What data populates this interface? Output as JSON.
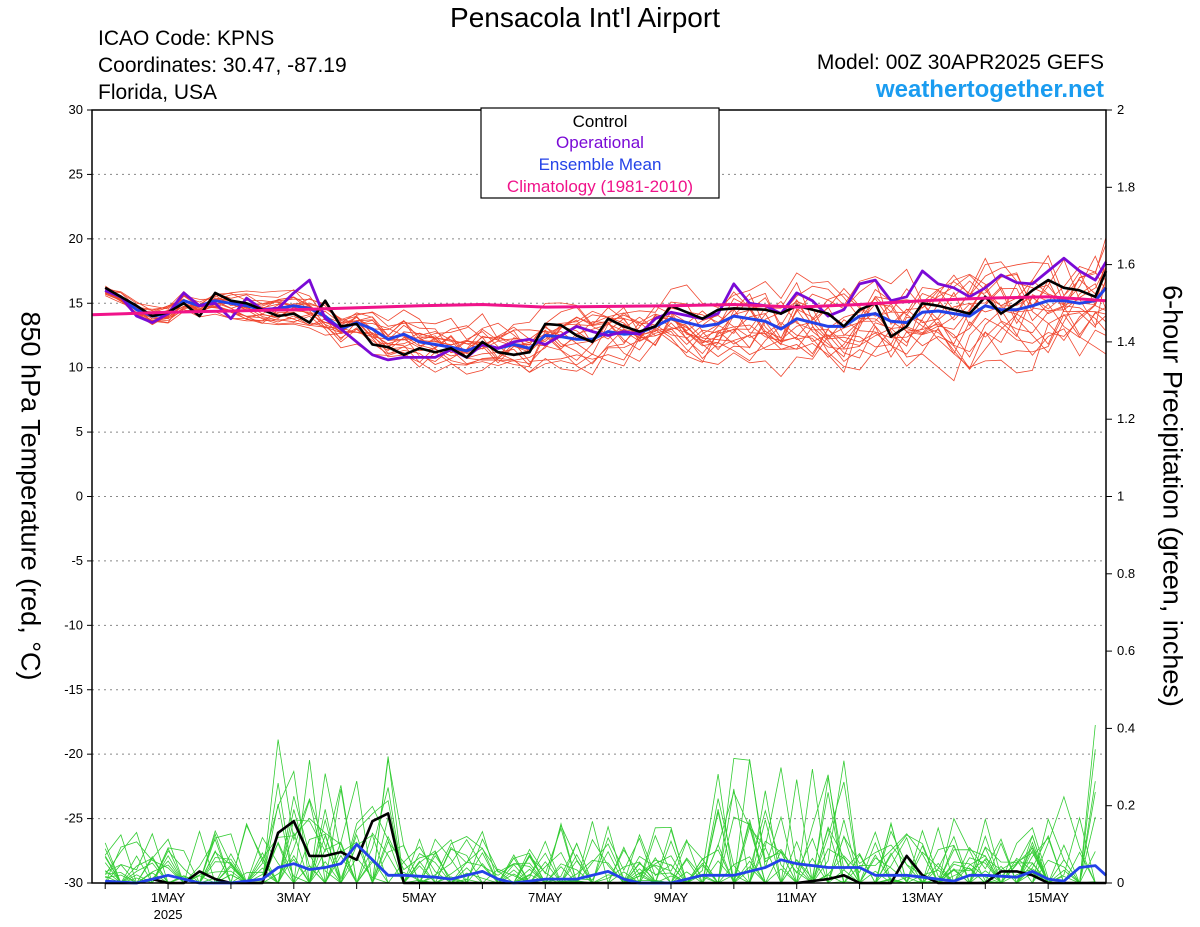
{
  "header": {
    "title": "Pensacola Int'l Airport",
    "icao": "ICAO Code: KPNS",
    "coords": "Coordinates: 30.47, -87.19",
    "region": "Florida, USA",
    "model": "Model: 00Z 30APR2025 GEFS",
    "site": "weathertogether.net"
  },
  "colors": {
    "control": "#000000",
    "operational": "#7a0ad6",
    "ensemble_mean": "#2342e8",
    "climatology": "#f0138a",
    "members_temp": "#f0462e",
    "members_precip": "#33cc33"
  },
  "chart_data": {
    "type": "line",
    "xlabels": [
      "1MAY",
      "3MAY",
      "5MAY",
      "7MAY",
      "9MAY",
      "11MAY",
      "13MAY",
      "15MAY"
    ],
    "xlabel_year": "2025",
    "xlabel_days": [
      1,
      3,
      5,
      7,
      9,
      11,
      13,
      15
    ],
    "xlim": [
      -0.21,
      15.92
    ],
    "ylabel": "850 hPa Temperature (red, °C)",
    "y2label": "6-hour Precipitation (green, inches)",
    "ylim": [
      -30,
      30
    ],
    "y2lim": [
      0,
      2
    ],
    "yticks": [
      30,
      25,
      20,
      15,
      10,
      5,
      0,
      -5,
      -10,
      -15,
      -20,
      -25,
      -30
    ],
    "y2ticks": [
      2,
      1.8,
      1.6,
      1.4,
      1.2,
      1,
      0.8,
      0.6,
      0.4,
      0.2,
      0
    ],
    "grid": "horizontal dotted",
    "legend": {
      "position": "top-center",
      "entries": [
        "Control",
        "Operational",
        "Ensemble Mean",
        "Climatology (1981-2010)"
      ]
    },
    "temperature": {
      "control": [
        [
          0.0,
          16.2
        ],
        [
          0.5,
          14.8
        ],
        [
          0.75,
          14.0
        ],
        [
          1.0,
          14.3
        ],
        [
          1.25,
          15.0
        ],
        [
          1.5,
          14.0
        ],
        [
          1.75,
          15.8
        ],
        [
          2.0,
          15.2
        ],
        [
          2.25,
          15.0
        ],
        [
          2.5,
          14.5
        ],
        [
          2.75,
          14.0
        ],
        [
          3.0,
          14.2
        ],
        [
          3.25,
          13.5
        ],
        [
          3.5,
          15.2
        ],
        [
          3.75,
          13.2
        ],
        [
          4.0,
          13.4
        ],
        [
          4.25,
          11.8
        ],
        [
          4.5,
          11.6
        ],
        [
          4.75,
          11.0
        ],
        [
          5.0,
          11.5
        ],
        [
          5.25,
          11.2
        ],
        [
          5.5,
          11.5
        ],
        [
          5.75,
          10.8
        ],
        [
          6.0,
          12.0
        ],
        [
          6.25,
          11.2
        ],
        [
          6.5,
          11.0
        ],
        [
          6.75,
          11.2
        ],
        [
          7.0,
          13.4
        ],
        [
          7.25,
          13.3
        ],
        [
          7.5,
          12.5
        ],
        [
          7.75,
          12.0
        ],
        [
          8.0,
          13.8
        ],
        [
          8.25,
          13.2
        ],
        [
          8.5,
          12.8
        ],
        [
          8.75,
          13.2
        ],
        [
          9.0,
          14.8
        ],
        [
          9.5,
          13.8
        ],
        [
          9.75,
          14.5
        ],
        [
          10.0,
          14.6
        ],
        [
          10.5,
          14.5
        ],
        [
          10.75,
          14.2
        ],
        [
          11.0,
          14.8
        ],
        [
          11.5,
          14.2
        ],
        [
          11.75,
          13.2
        ],
        [
          12.0,
          14.5
        ],
        [
          12.25,
          15.0
        ],
        [
          12.5,
          12.4
        ],
        [
          12.75,
          13.2
        ],
        [
          13.0,
          15.0
        ],
        [
          13.25,
          14.8
        ],
        [
          13.5,
          14.5
        ],
        [
          13.75,
          14.2
        ],
        [
          14.0,
          15.5
        ],
        [
          14.25,
          14.2
        ],
        [
          14.5,
          15.0
        ],
        [
          14.75,
          16.0
        ],
        [
          15.0,
          16.8
        ],
        [
          15.25,
          16.2
        ],
        [
          15.5,
          16.0
        ],
        [
          15.75,
          15.5
        ],
        [
          15.92,
          17.5
        ]
      ],
      "operational": [
        [
          0.0,
          16.0
        ],
        [
          0.25,
          15.5
        ],
        [
          0.5,
          14.0
        ],
        [
          0.75,
          13.5
        ],
        [
          1.0,
          14.2
        ],
        [
          1.25,
          15.8
        ],
        [
          1.5,
          14.8
        ],
        [
          1.75,
          15.0
        ],
        [
          2.0,
          13.8
        ],
        [
          2.25,
          15.4
        ],
        [
          2.5,
          14.5
        ],
        [
          2.75,
          14.6
        ],
        [
          3.0,
          15.8
        ],
        [
          3.25,
          16.8
        ],
        [
          3.5,
          13.8
        ],
        [
          3.75,
          13.0
        ],
        [
          4.0,
          12.0
        ],
        [
          4.25,
          11.0
        ],
        [
          4.5,
          10.6
        ],
        [
          4.75,
          10.8
        ],
        [
          5.0,
          10.8
        ],
        [
          5.25,
          10.8
        ],
        [
          5.5,
          11.4
        ],
        [
          5.75,
          10.8
        ],
        [
          6.0,
          11.8
        ],
        [
          6.25,
          11.5
        ],
        [
          6.5,
          12.0
        ],
        [
          6.75,
          12.2
        ],
        [
          7.0,
          11.8
        ],
        [
          7.25,
          12.5
        ],
        [
          7.5,
          13.2
        ],
        [
          7.75,
          12.8
        ],
        [
          8.0,
          12.5
        ],
        [
          8.25,
          12.8
        ],
        [
          8.5,
          12.6
        ],
        [
          8.75,
          13.8
        ],
        [
          9.0,
          14.3
        ],
        [
          9.5,
          13.8
        ],
        [
          9.75,
          14.2
        ],
        [
          10.0,
          16.5
        ],
        [
          10.25,
          15.0
        ],
        [
          10.5,
          14.8
        ],
        [
          10.75,
          14.2
        ],
        [
          11.0,
          15.8
        ],
        [
          11.25,
          15.2
        ],
        [
          11.5,
          14.0
        ],
        [
          11.75,
          14.5
        ],
        [
          12.0,
          16.5
        ],
        [
          12.25,
          16.8
        ],
        [
          12.5,
          15.2
        ],
        [
          12.75,
          15.5
        ],
        [
          13.0,
          17.5
        ],
        [
          13.25,
          16.5
        ],
        [
          13.5,
          16.2
        ],
        [
          13.75,
          15.5
        ],
        [
          14.0,
          16.2
        ],
        [
          14.25,
          17.2
        ],
        [
          14.5,
          16.6
        ],
        [
          14.75,
          16.5
        ],
        [
          15.0,
          17.5
        ],
        [
          15.25,
          18.5
        ],
        [
          15.5,
          17.5
        ],
        [
          15.75,
          16.8
        ],
        [
          15.92,
          18.2
        ]
      ],
      "ensemble_mean": [
        [
          0.0,
          16.0
        ],
        [
          0.25,
          15.5
        ],
        [
          0.5,
          14.5
        ],
        [
          0.75,
          14.0
        ],
        [
          1.0,
          14.2
        ],
        [
          1.25,
          15.2
        ],
        [
          1.5,
          14.8
        ],
        [
          1.75,
          15.2
        ],
        [
          2.0,
          15.0
        ],
        [
          2.25,
          14.8
        ],
        [
          2.5,
          14.5
        ],
        [
          2.75,
          14.6
        ],
        [
          3.0,
          14.8
        ],
        [
          3.25,
          14.6
        ],
        [
          3.5,
          14.0
        ],
        [
          3.75,
          13.0
        ],
        [
          4.0,
          13.5
        ],
        [
          4.25,
          13.0
        ],
        [
          4.5,
          12.2
        ],
        [
          4.75,
          12.6
        ],
        [
          5.0,
          12.0
        ],
        [
          5.25,
          11.8
        ],
        [
          5.5,
          11.6
        ],
        [
          5.75,
          11.3
        ],
        [
          6.0,
          11.8
        ],
        [
          6.25,
          11.5
        ],
        [
          6.5,
          11.8
        ],
        [
          6.75,
          11.5
        ],
        [
          7.0,
          12.5
        ],
        [
          7.25,
          12.4
        ],
        [
          7.5,
          12.2
        ],
        [
          7.75,
          12.2
        ],
        [
          8.0,
          12.8
        ],
        [
          8.25,
          12.6
        ],
        [
          8.5,
          12.7
        ],
        [
          8.75,
          13.2
        ],
        [
          9.0,
          13.8
        ],
        [
          9.25,
          13.5
        ],
        [
          9.5,
          13.2
        ],
        [
          9.75,
          13.4
        ],
        [
          10.0,
          14.0
        ],
        [
          10.25,
          13.8
        ],
        [
          10.5,
          13.6
        ],
        [
          10.75,
          13.0
        ],
        [
          11.0,
          13.8
        ],
        [
          11.25,
          13.5
        ],
        [
          11.5,
          13.2
        ],
        [
          11.75,
          13.2
        ],
        [
          12.0,
          14.0
        ],
        [
          12.25,
          14.2
        ],
        [
          12.5,
          13.6
        ],
        [
          12.75,
          13.5
        ],
        [
          13.0,
          14.3
        ],
        [
          13.25,
          14.4
        ],
        [
          13.5,
          14.2
        ],
        [
          13.75,
          14.0
        ],
        [
          14.0,
          14.8
        ],
        [
          14.25,
          14.5
        ],
        [
          14.5,
          14.5
        ],
        [
          14.75,
          14.8
        ],
        [
          15.0,
          15.2
        ],
        [
          15.25,
          15.2
        ],
        [
          15.5,
          15.0
        ],
        [
          15.75,
          15.2
        ],
        [
          15.92,
          16.2
        ]
      ],
      "climatology": [
        [
          -0.21,
          14.1
        ],
        [
          1.0,
          14.3
        ],
        [
          3.0,
          14.5
        ],
        [
          5.0,
          14.8
        ],
        [
          6.0,
          14.9
        ],
        [
          7.0,
          14.7
        ],
        [
          9.0,
          14.8
        ],
        [
          10.0,
          14.9
        ],
        [
          11.0,
          14.7
        ],
        [
          12.0,
          14.9
        ],
        [
          13.0,
          15.2
        ],
        [
          14.0,
          15.4
        ],
        [
          15.0,
          15.5
        ],
        [
          15.92,
          15.2
        ]
      ]
    },
    "precipitation": {
      "control": [
        [
          0.0,
          0.0
        ],
        [
          0.5,
          0.0
        ],
        [
          0.75,
          0.01
        ],
        [
          1.0,
          0.0
        ],
        [
          1.25,
          0.0
        ],
        [
          1.5,
          0.03
        ],
        [
          1.75,
          0.01
        ],
        [
          2.0,
          0.0
        ],
        [
          2.25,
          0.0
        ],
        [
          2.5,
          0.0
        ],
        [
          2.75,
          0.13
        ],
        [
          3.0,
          0.16
        ],
        [
          3.25,
          0.07
        ],
        [
          3.5,
          0.07
        ],
        [
          3.75,
          0.08
        ],
        [
          4.0,
          0.06
        ],
        [
          4.25,
          0.16
        ],
        [
          4.5,
          0.18
        ],
        [
          4.75,
          0.0
        ],
        [
          5.0,
          0.0
        ],
        [
          6.0,
          0.0
        ],
        [
          7.0,
          0.0
        ],
        [
          8.0,
          0.0
        ],
        [
          9.0,
          0.0
        ],
        [
          10.0,
          0.0
        ],
        [
          11.0,
          0.0
        ],
        [
          11.5,
          0.01
        ],
        [
          11.75,
          0.02
        ],
        [
          12.0,
          0.0
        ],
        [
          12.5,
          0.0
        ],
        [
          12.75,
          0.07
        ],
        [
          13.0,
          0.02
        ],
        [
          13.25,
          0.0
        ],
        [
          14.0,
          0.0
        ],
        [
          14.25,
          0.03
        ],
        [
          14.5,
          0.03
        ],
        [
          14.75,
          0.02
        ],
        [
          15.0,
          0.0
        ],
        [
          15.92,
          0.0
        ]
      ],
      "ensemble_mean": [
        [
          0.0,
          0.005
        ],
        [
          0.5,
          0.0
        ],
        [
          1.0,
          0.02
        ],
        [
          1.25,
          0.01
        ],
        [
          1.5,
          0.0
        ],
        [
          2.0,
          0.0
        ],
        [
          2.5,
          0.01
        ],
        [
          2.75,
          0.04
        ],
        [
          3.0,
          0.05
        ],
        [
          3.25,
          0.035
        ],
        [
          3.5,
          0.04
        ],
        [
          3.75,
          0.05
        ],
        [
          4.0,
          0.1
        ],
        [
          4.25,
          0.06
        ],
        [
          4.5,
          0.02
        ],
        [
          4.75,
          0.02
        ],
        [
          5.25,
          0.015
        ],
        [
          5.5,
          0.01
        ],
        [
          6.0,
          0.03
        ],
        [
          6.25,
          0.01
        ],
        [
          6.5,
          0.0
        ],
        [
          7.0,
          0.01
        ],
        [
          7.5,
          0.01
        ],
        [
          8.0,
          0.03
        ],
        [
          8.25,
          0.01
        ],
        [
          8.5,
          0.0
        ],
        [
          9.0,
          0.0
        ],
        [
          9.5,
          0.02
        ],
        [
          9.75,
          0.02
        ],
        [
          10.0,
          0.02
        ],
        [
          10.5,
          0.04
        ],
        [
          10.75,
          0.06
        ],
        [
          11.0,
          0.05
        ],
        [
          11.5,
          0.04
        ],
        [
          12.0,
          0.04
        ],
        [
          12.25,
          0.02
        ],
        [
          12.5,
          0.02
        ],
        [
          12.75,
          0.02
        ],
        [
          13.0,
          0.015
        ],
        [
          13.5,
          0.005
        ],
        [
          13.75,
          0.02
        ],
        [
          14.0,
          0.02
        ],
        [
          14.5,
          0.015
        ],
        [
          14.75,
          0.03
        ],
        [
          15.0,
          0.01
        ],
        [
          15.25,
          0.005
        ],
        [
          15.5,
          0.04
        ],
        [
          15.75,
          0.045
        ],
        [
          15.92,
          0.02
        ]
      ]
    }
  }
}
